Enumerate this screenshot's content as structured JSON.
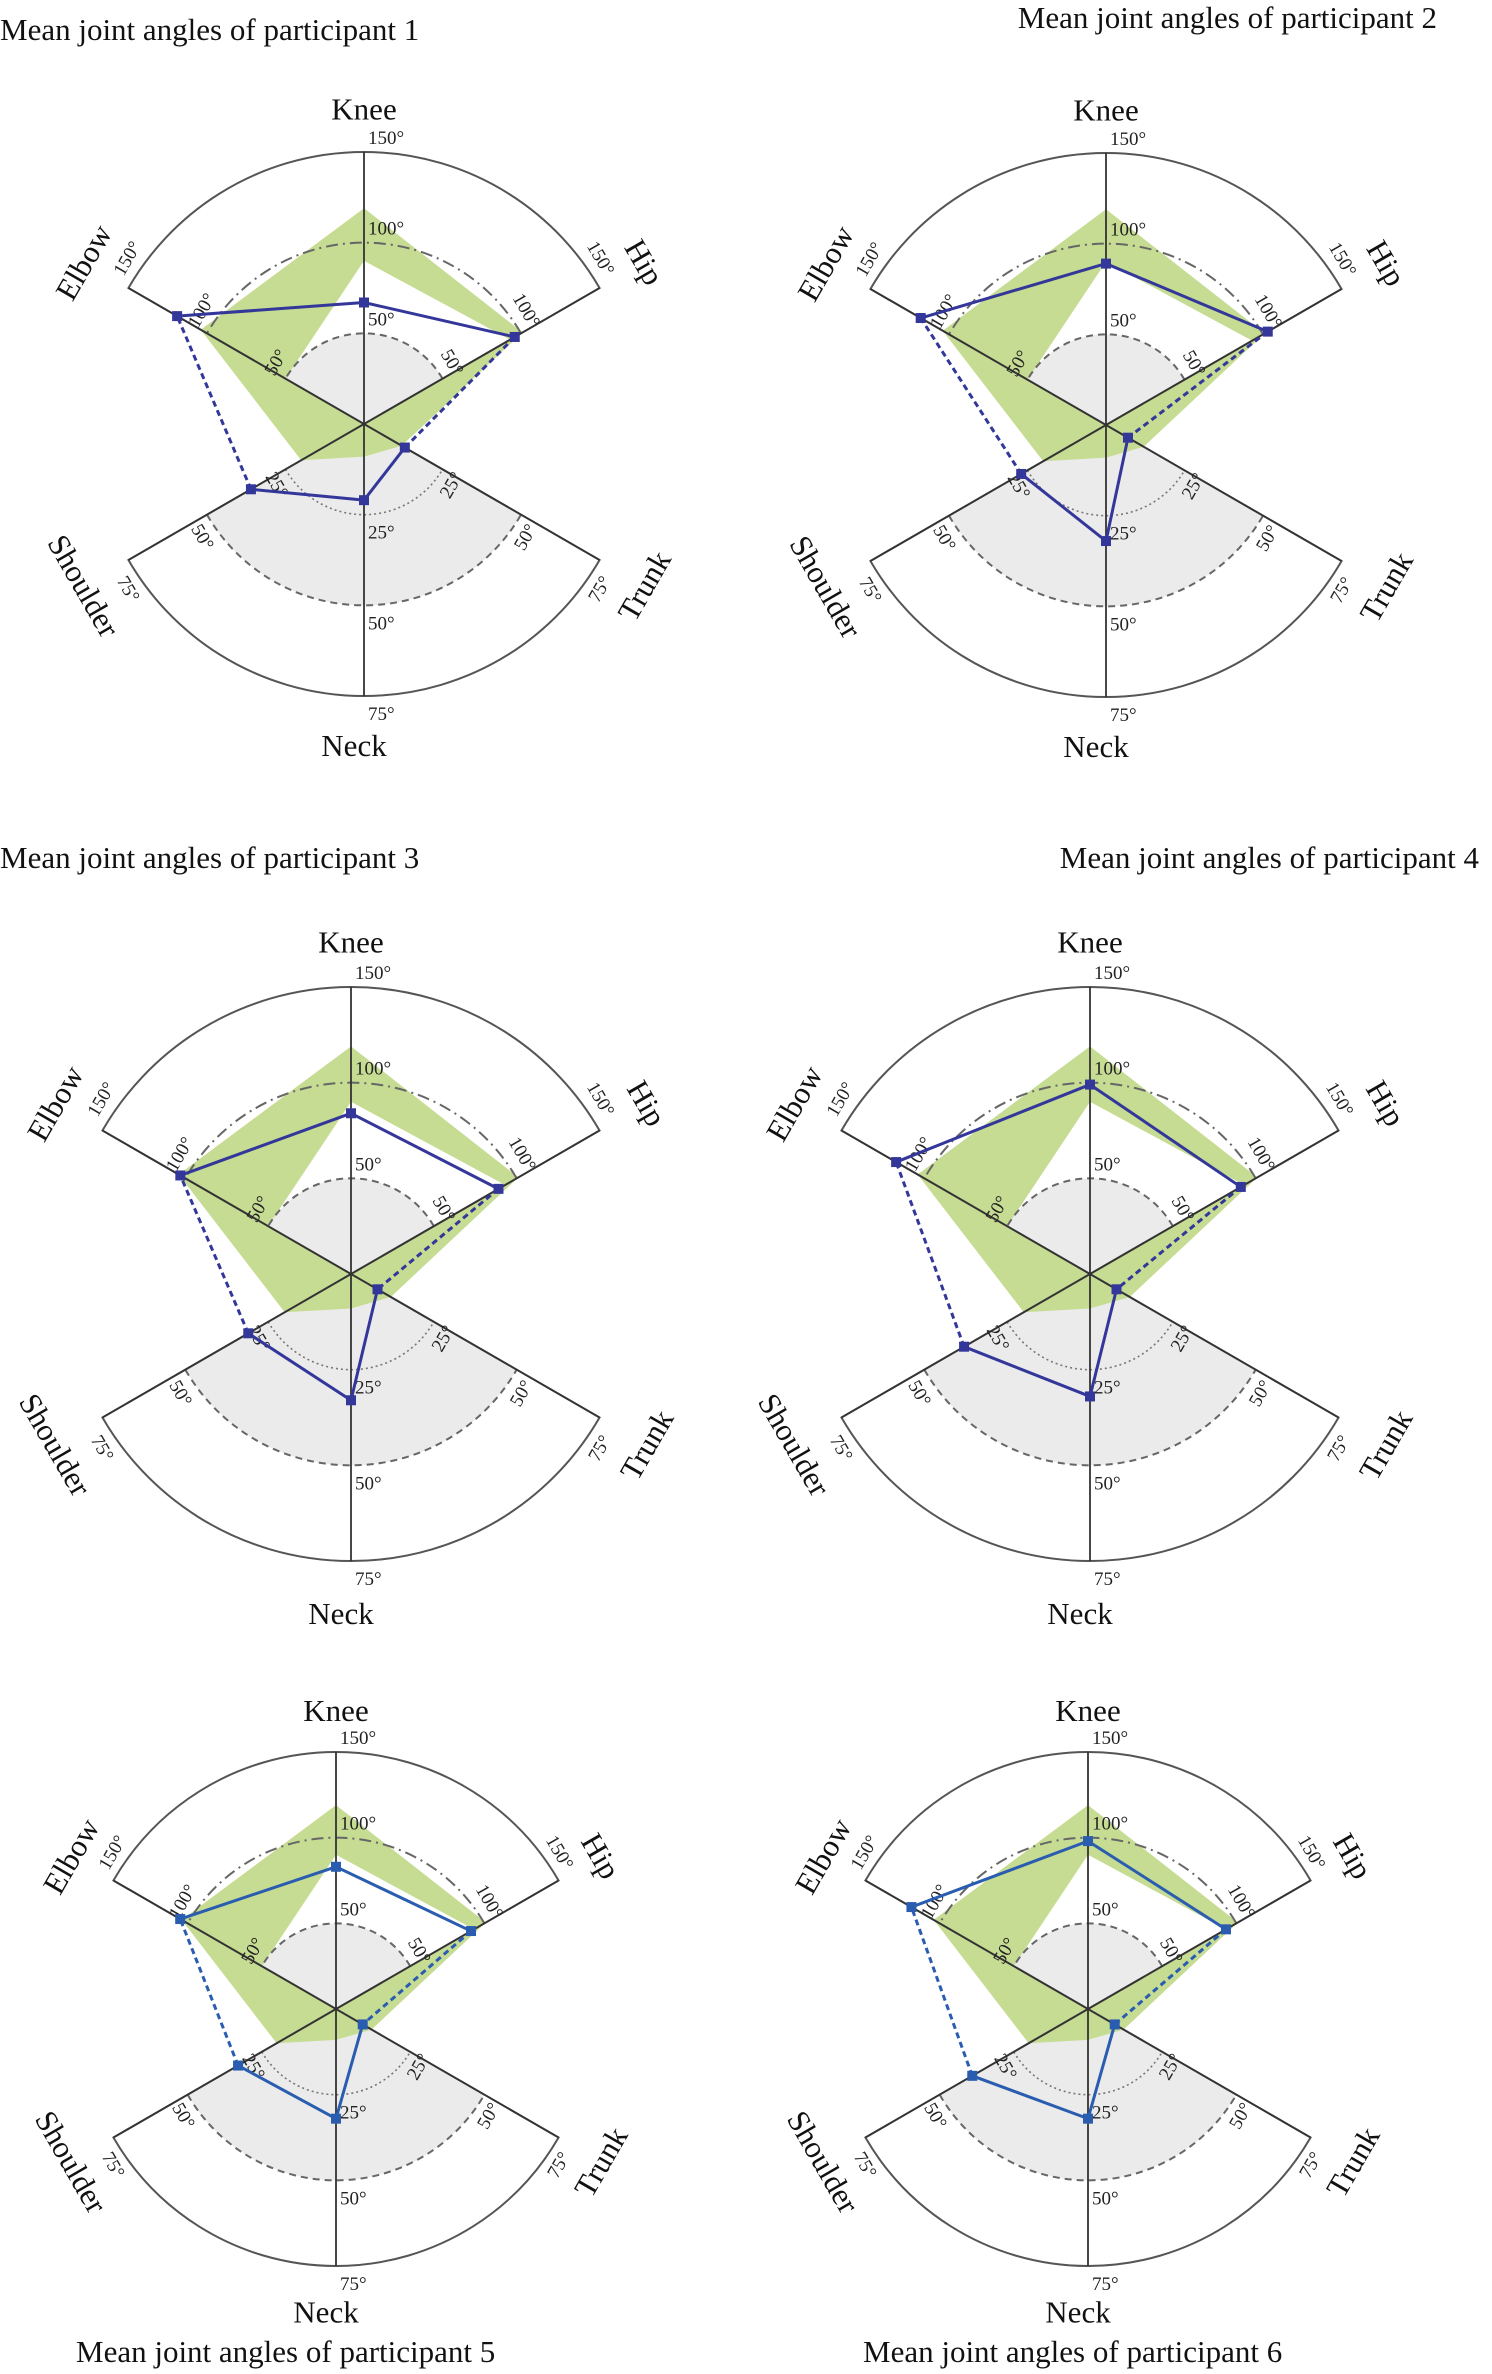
{
  "axes": [
    {
      "name": "Elbow",
      "half": "upper",
      "max": 150,
      "tick_labels": [
        "50°",
        "100°",
        "150°"
      ],
      "ticks": [
        50,
        100,
        150
      ]
    },
    {
      "name": "Knee",
      "half": "upper",
      "max": 150,
      "tick_labels": [
        "50°",
        "100°",
        "150°"
      ],
      "ticks": [
        50,
        100,
        150
      ]
    },
    {
      "name": "Hip",
      "half": "upper",
      "max": 150,
      "tick_labels": [
        "50°",
        "100°",
        "150°"
      ],
      "ticks": [
        50,
        100,
        150
      ]
    },
    {
      "name": "Trunk",
      "half": "lower",
      "max": 75,
      "tick_labels": [
        "25°",
        "50°",
        "75°"
      ],
      "ticks": [
        25,
        50,
        75
      ]
    },
    {
      "name": "Neck",
      "half": "lower",
      "max": 75,
      "tick_labels": [
        "25°",
        "50°",
        "75°"
      ],
      "ticks": [
        25,
        50,
        75
      ]
    },
    {
      "name": "Shoulder",
      "half": "lower",
      "max": 75,
      "tick_labels": [
        "25°",
        "50°",
        "75°"
      ],
      "ticks": [
        25,
        50,
        75
      ]
    }
  ],
  "reference_range": {
    "min": {
      "Elbow": 50,
      "Knee": 90,
      "Hip": 93,
      "Trunk": 0,
      "Neck": 0,
      "Shoulder": 0
    },
    "max": {
      "Elbow": 104,
      "Knee": 119,
      "Hip": 101,
      "Trunk": 12,
      "Neck": 9,
      "Shoulder": 20
    }
  },
  "colors": {
    "reference_band": "#c6dc93",
    "comfort_zone": "#ebebeb",
    "mean_line_1_4": "#34379a",
    "mean_line_5_6": "#2a5db0",
    "outline": "#555555"
  },
  "chart_data": [
    {
      "type": "radar",
      "title": "Mean joint angles of participant 1",
      "grid": true,
      "values": {
        "Elbow": 119,
        "Knee": 67,
        "Hip": 96,
        "Trunk": 13,
        "Neck": 21,
        "Shoulder": 36
      }
    },
    {
      "type": "radar",
      "title": "Mean joint angles of participant 2",
      "grid": true,
      "values": {
        "Elbow": 118,
        "Knee": 89,
        "Hip": 103,
        "Trunk": 7,
        "Neck": 32,
        "Shoulder": 27
      }
    },
    {
      "type": "radar",
      "title": "Mean joint angles of participant 3",
      "grid": true,
      "values": {
        "Elbow": 103,
        "Knee": 84,
        "Hip": 89,
        "Trunk": 8,
        "Neck": 33,
        "Shoulder": 31
      }
    },
    {
      "type": "radar",
      "title": "Mean joint angles of participant 4",
      "grid": true,
      "values": {
        "Elbow": 117,
        "Knee": 99,
        "Hip": 91,
        "Trunk": 8,
        "Neck": 32,
        "Shoulder": 38
      }
    },
    {
      "type": "radar",
      "title": "Mean joint angles of participant 5",
      "grid": true,
      "values": {
        "Elbow": 105,
        "Knee": 83,
        "Hip": 91,
        "Trunk": 9,
        "Neck": 32,
        "Shoulder": 33
      }
    },
    {
      "type": "radar",
      "title": "Mean joint angles of participant 6",
      "grid": true,
      "values": {
        "Elbow": 119,
        "Knee": 98,
        "Hip": 93,
        "Trunk": 9,
        "Neck": 32,
        "Shoulder": 39
      }
    }
  ]
}
